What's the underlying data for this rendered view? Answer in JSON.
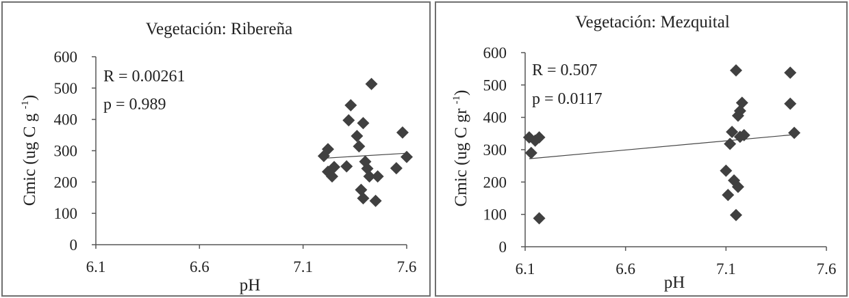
{
  "chart_data": [
    {
      "type": "scatter",
      "title": "Vegetación: Ribereña",
      "xlabel": "pH",
      "ylabel": "Cmic (ug C g -1)",
      "ylabel_base": "Cmic (ug C g ",
      "ylabel_sup": "-1",
      "ylabel_tail": ")",
      "xlim": [
        6.1,
        7.6
      ],
      "ylim": [
        0,
        600
      ],
      "x_ticks": [
        "6.1",
        "6.6",
        "7.1",
        "7.6"
      ],
      "y_ticks": [
        "0",
        "100",
        "200",
        "300",
        "400",
        "500",
        "600"
      ],
      "annotations": [
        "R = 0.00261",
        "p = 0.989"
      ],
      "marker_color": "#404040",
      "trendline": {
        "x": [
          7.2,
          7.6
        ],
        "y": [
          276,
          292
        ]
      },
      "points": [
        {
          "x": 7.2,
          "y": 283
        },
        {
          "x": 7.22,
          "y": 305
        },
        {
          "x": 7.22,
          "y": 233
        },
        {
          "x": 7.24,
          "y": 218
        },
        {
          "x": 7.25,
          "y": 248
        },
        {
          "x": 7.31,
          "y": 250
        },
        {
          "x": 7.32,
          "y": 397
        },
        {
          "x": 7.33,
          "y": 445
        },
        {
          "x": 7.36,
          "y": 347
        },
        {
          "x": 7.37,
          "y": 314
        },
        {
          "x": 7.38,
          "y": 175
        },
        {
          "x": 7.39,
          "y": 148
        },
        {
          "x": 7.39,
          "y": 388
        },
        {
          "x": 7.4,
          "y": 265
        },
        {
          "x": 7.41,
          "y": 243
        },
        {
          "x": 7.42,
          "y": 218
        },
        {
          "x": 7.43,
          "y": 513
        },
        {
          "x": 7.45,
          "y": 140
        },
        {
          "x": 7.46,
          "y": 218
        },
        {
          "x": 7.55,
          "y": 244
        },
        {
          "x": 7.58,
          "y": 358
        },
        {
          "x": 7.6,
          "y": 280
        }
      ]
    },
    {
      "type": "scatter",
      "title": "Vegetación: Mezquital",
      "xlabel": "pH",
      "ylabel": "Cmic (ug C gr -1)",
      "ylabel_base": "Cmic (ug C gr ",
      "ylabel_sup": "-1",
      "ylabel_tail": ")",
      "xlim": [
        6.1,
        7.6
      ],
      "ylim": [
        0,
        600
      ],
      "x_ticks": [
        "6.1",
        "6.6",
        "7.1",
        "7.6"
      ],
      "y_ticks": [
        "0",
        "100",
        "200",
        "300",
        "400",
        "500",
        "600"
      ],
      "annotations": [
        "R = 0.507",
        "p = 0.0117"
      ],
      "marker_color": "#404040",
      "trendline": {
        "x": [
          6.12,
          7.43
        ],
        "y": [
          272,
          346
        ]
      },
      "points": [
        {
          "x": 6.12,
          "y": 338
        },
        {
          "x": 6.13,
          "y": 290
        },
        {
          "x": 6.15,
          "y": 328
        },
        {
          "x": 6.17,
          "y": 338
        },
        {
          "x": 6.17,
          "y": 88
        },
        {
          "x": 7.1,
          "y": 235
        },
        {
          "x": 7.11,
          "y": 160
        },
        {
          "x": 7.12,
          "y": 318
        },
        {
          "x": 7.13,
          "y": 355
        },
        {
          "x": 7.14,
          "y": 205
        },
        {
          "x": 7.15,
          "y": 545
        },
        {
          "x": 7.15,
          "y": 98
        },
        {
          "x": 7.16,
          "y": 405
        },
        {
          "x": 7.16,
          "y": 185
        },
        {
          "x": 7.17,
          "y": 340
        },
        {
          "x": 7.17,
          "y": 420
        },
        {
          "x": 7.18,
          "y": 445
        },
        {
          "x": 7.19,
          "y": 345
        },
        {
          "x": 7.42,
          "y": 538
        },
        {
          "x": 7.42,
          "y": 442
        },
        {
          "x": 7.44,
          "y": 352
        }
      ]
    }
  ]
}
